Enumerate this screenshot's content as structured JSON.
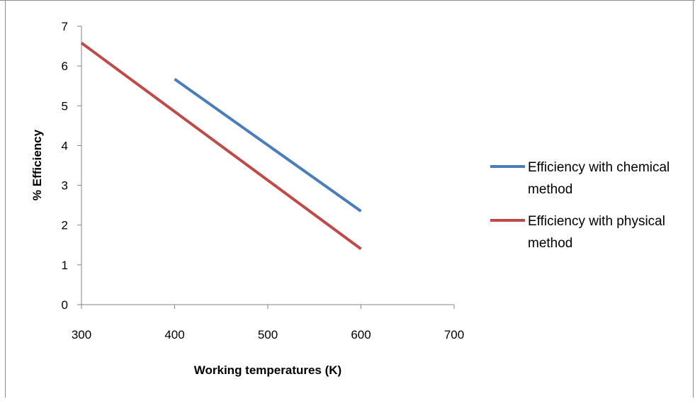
{
  "chart_data": {
    "type": "scatter",
    "mode": "lines",
    "title": "",
    "xlabel": "Working temperatures (K)",
    "ylabel": "% Efficiency",
    "xlim": [
      300,
      700
    ],
    "ylim": [
      0,
      7
    ],
    "xticks": [
      "300",
      "400",
      "500",
      "600",
      "700"
    ],
    "yticks": [
      "0",
      "1",
      "2",
      "3",
      "4",
      "5",
      "6",
      "7"
    ],
    "grid": false,
    "legend": "right",
    "series": [
      {
        "name": "Efficiency with chemical method",
        "name_lines": [
          "Efficiency with chemical",
          "method"
        ],
        "color": "#4a7ebb",
        "x": [
          400,
          600
        ],
        "y": [
          5.67,
          2.35
        ]
      },
      {
        "name": "Efficiency with physical method",
        "name_lines": [
          "Efficiency with physical",
          "method"
        ],
        "color": "#be4b48",
        "x": [
          300,
          600
        ],
        "y": [
          6.58,
          1.4
        ]
      }
    ]
  }
}
